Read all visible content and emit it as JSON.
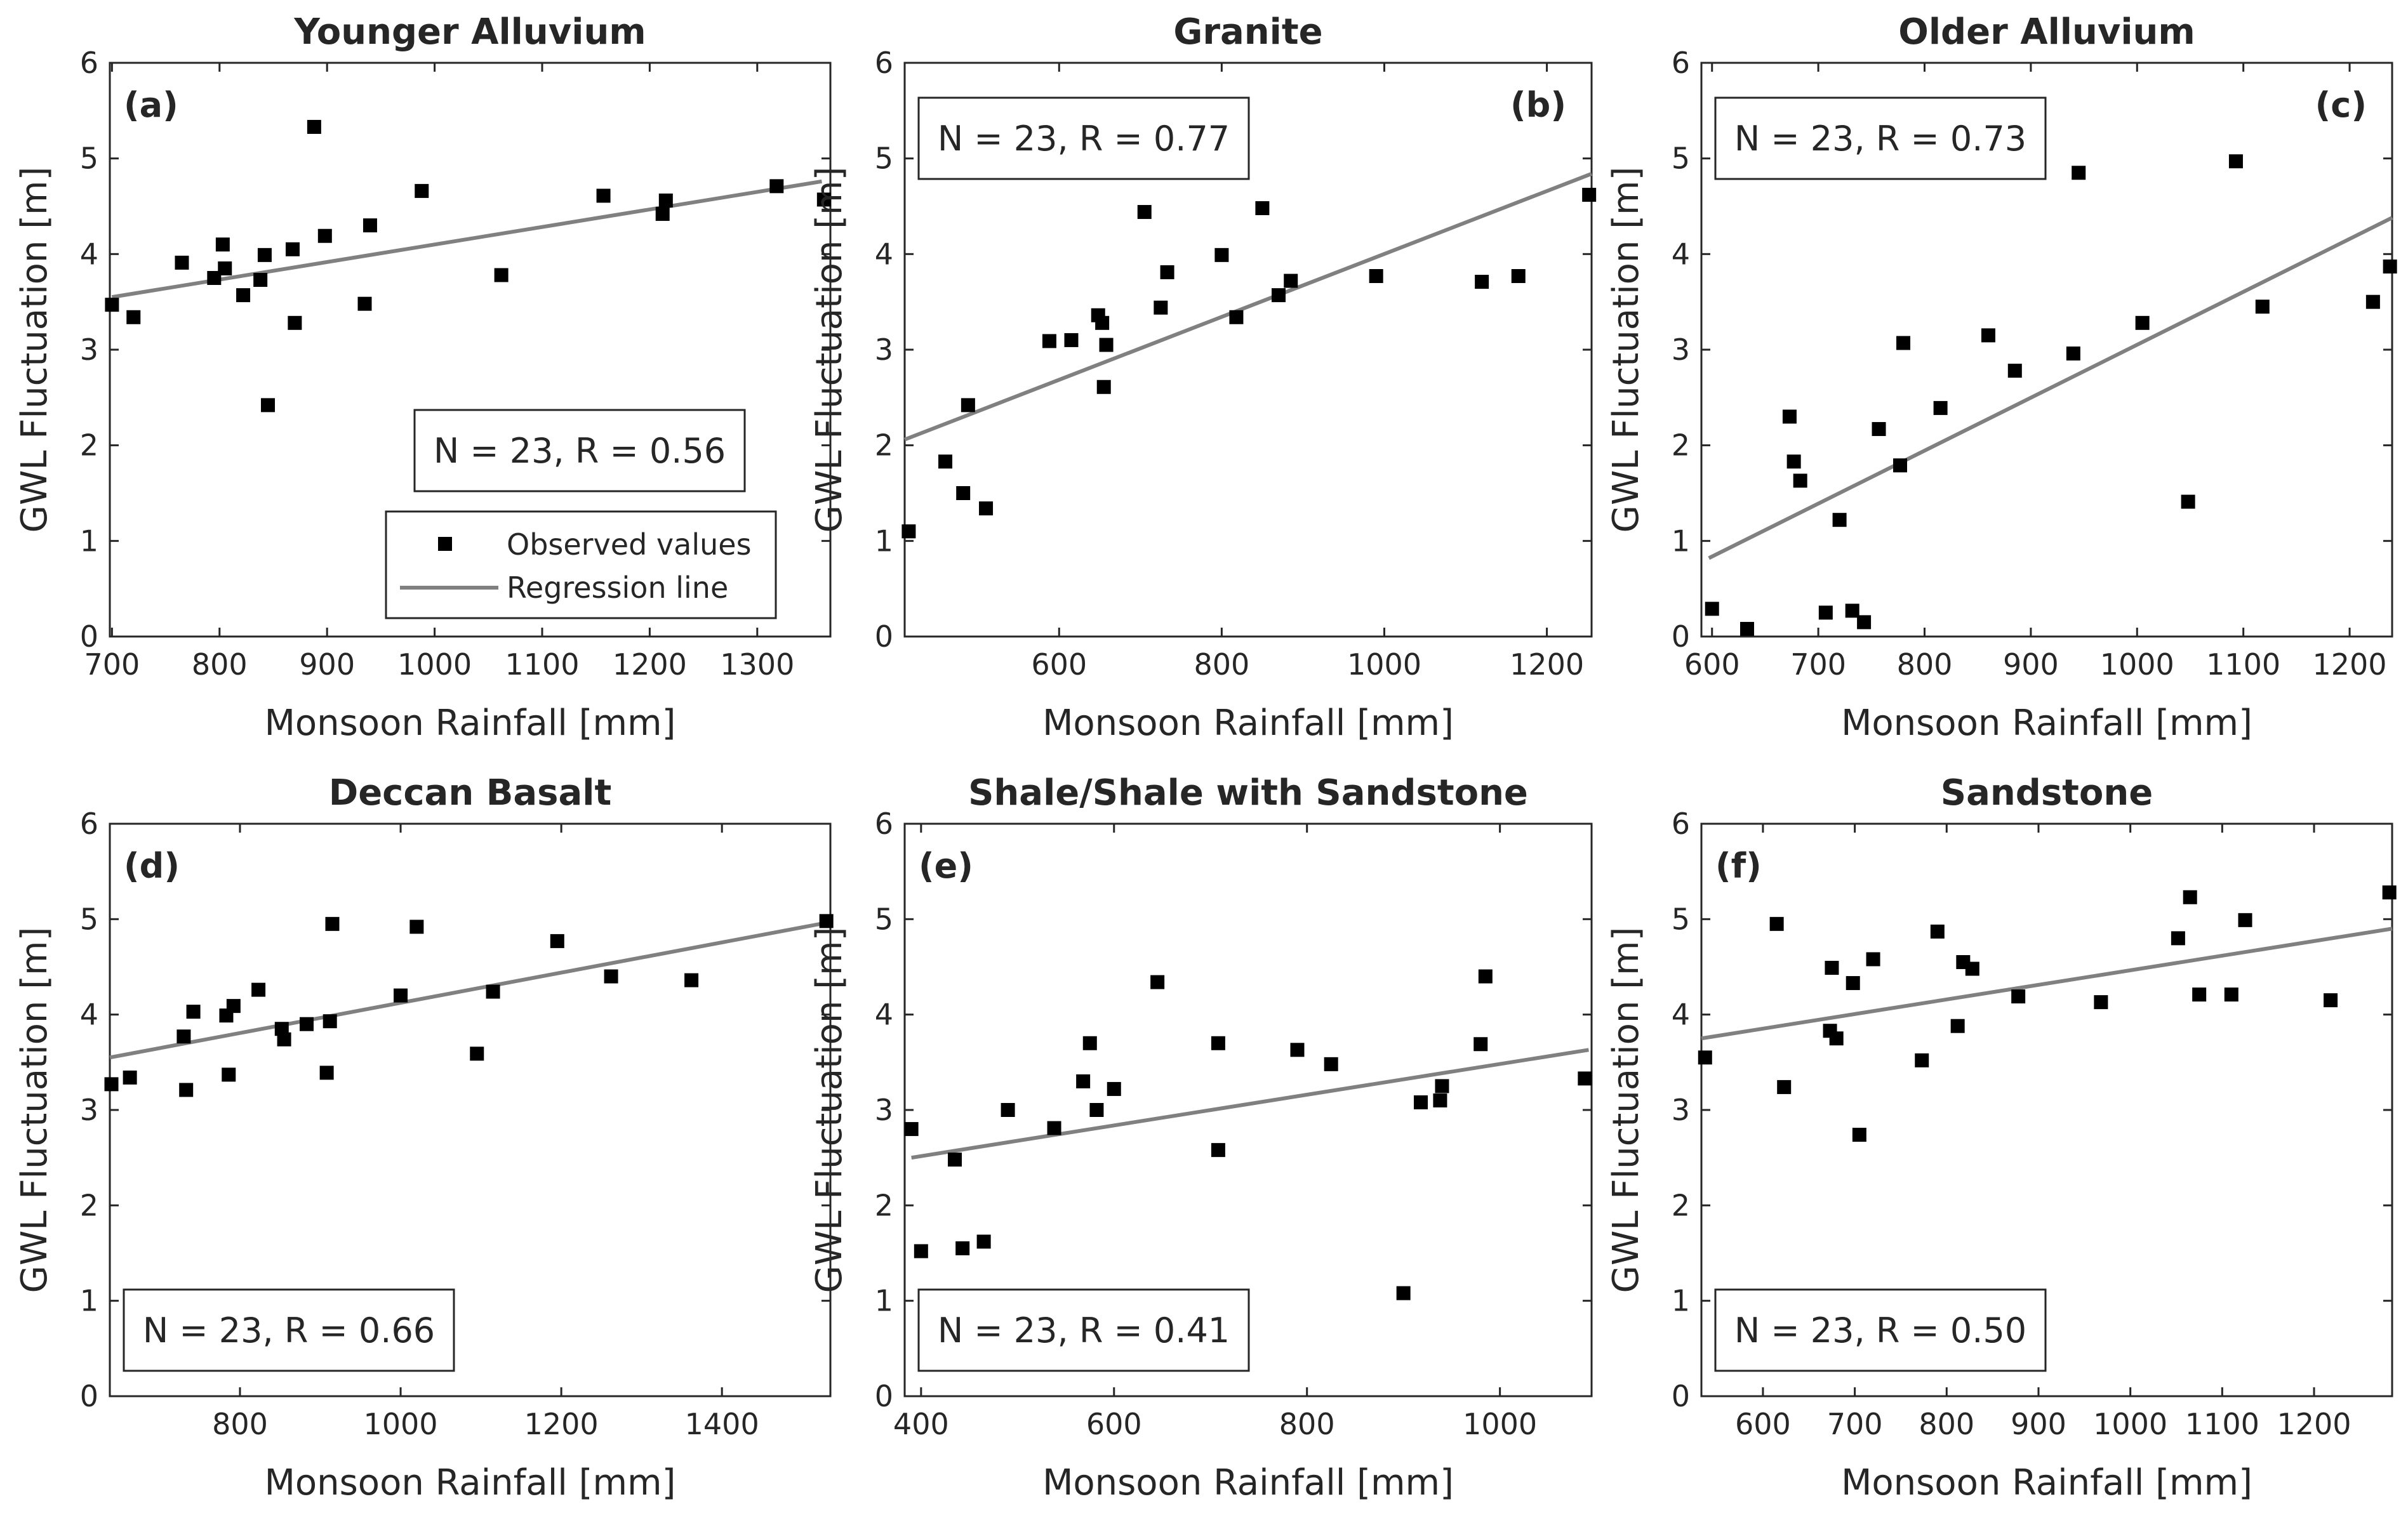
{
  "chart_data": [
    {
      "type": "scatter",
      "title": "Younger Alluvium",
      "panel_label": "(a)",
      "xlabel": "Monsoon Rainfall [mm]",
      "ylabel": "GWL Fluctuation [m]",
      "xlim": [
        698,
        1368
      ],
      "ylim": [
        0,
        6
      ],
      "xticks": [
        700,
        800,
        900,
        1000,
        1100,
        1200,
        1300
      ],
      "yticks": [
        0,
        1,
        2,
        3,
        4,
        5,
        6
      ],
      "stat_text": "N = 23, R = 0.56",
      "stat_box": "lower-right",
      "regression": {
        "x": [
          700,
          1360
        ],
        "y": [
          3.55,
          4.76
        ]
      },
      "points": [
        {
          "x": 700,
          "y": 3.47
        },
        {
          "x": 720,
          "y": 3.34
        },
        {
          "x": 765,
          "y": 3.91
        },
        {
          "x": 795,
          "y": 3.75
        },
        {
          "x": 803,
          "y": 4.1
        },
        {
          "x": 805,
          "y": 3.85
        },
        {
          "x": 822,
          "y": 3.57
        },
        {
          "x": 838,
          "y": 3.73
        },
        {
          "x": 842,
          "y": 3.99
        },
        {
          "x": 845,
          "y": 2.42
        },
        {
          "x": 868,
          "y": 4.05
        },
        {
          "x": 870,
          "y": 3.28
        },
        {
          "x": 888,
          "y": 5.33
        },
        {
          "x": 898,
          "y": 4.19
        },
        {
          "x": 935,
          "y": 3.48
        },
        {
          "x": 940,
          "y": 4.3
        },
        {
          "x": 988,
          "y": 4.66
        },
        {
          "x": 1062,
          "y": 3.78
        },
        {
          "x": 1157,
          "y": 4.61
        },
        {
          "x": 1212,
          "y": 4.42
        },
        {
          "x": 1215,
          "y": 4.56
        },
        {
          "x": 1318,
          "y": 4.71
        },
        {
          "x": 1362,
          "y": 4.57
        }
      ]
    },
    {
      "type": "scatter",
      "title": "Granite",
      "panel_label": "(b)",
      "xlabel": "Monsoon Rainfall [mm]",
      "ylabel": "GWL Fluctuation [m]",
      "xlim": [
        410,
        1255
      ],
      "ylim": [
        0,
        6
      ],
      "xticks": [
        600,
        800,
        1000,
        1200
      ],
      "yticks": [
        0,
        1,
        2,
        3,
        4,
        5,
        6
      ],
      "stat_text": "N = 23, R = 0.77",
      "stat_box": "upper-left",
      "regression": {
        "x": [
          410,
          1255
        ],
        "y": [
          2.06,
          4.84
        ]
      },
      "points": [
        {
          "x": 415,
          "y": 1.1
        },
        {
          "x": 460,
          "y": 1.83
        },
        {
          "x": 482,
          "y": 1.5
        },
        {
          "x": 488,
          "y": 2.42
        },
        {
          "x": 510,
          "y": 1.34
        },
        {
          "x": 588,
          "y": 3.09
        },
        {
          "x": 615,
          "y": 3.1
        },
        {
          "x": 648,
          "y": 3.36
        },
        {
          "x": 653,
          "y": 3.28
        },
        {
          "x": 655,
          "y": 2.61
        },
        {
          "x": 658,
          "y": 3.05
        },
        {
          "x": 705,
          "y": 4.44
        },
        {
          "x": 725,
          "y": 3.44
        },
        {
          "x": 733,
          "y": 3.81
        },
        {
          "x": 800,
          "y": 3.99
        },
        {
          "x": 818,
          "y": 3.34
        },
        {
          "x": 850,
          "y": 4.48
        },
        {
          "x": 870,
          "y": 3.57
        },
        {
          "x": 885,
          "y": 3.72
        },
        {
          "x": 990,
          "y": 3.77
        },
        {
          "x": 1120,
          "y": 3.71
        },
        {
          "x": 1165,
          "y": 3.77
        },
        {
          "x": 1252,
          "y": 4.62
        }
      ]
    },
    {
      "type": "scatter",
      "title": "Older Alluvium",
      "panel_label": "(c)",
      "xlabel": "Monsoon Rainfall [mm]",
      "ylabel": "GWL Fluctuation [m]",
      "xlim": [
        590,
        1240
      ],
      "ylim": [
        0,
        6
      ],
      "xticks": [
        600,
        700,
        800,
        900,
        1000,
        1100,
        1200
      ],
      "yticks": [
        0,
        1,
        2,
        3,
        4,
        5,
        6
      ],
      "stat_text": "N = 23, R = 0.73",
      "stat_box": "upper-left",
      "regression": {
        "x": [
          597,
          1240
        ],
        "y": [
          0.82,
          4.38
        ]
      },
      "points": [
        {
          "x": 600,
          "y": 0.29
        },
        {
          "x": 633,
          "y": 0.08
        },
        {
          "x": 673,
          "y": 2.3
        },
        {
          "x": 677,
          "y": 1.83
        },
        {
          "x": 683,
          "y": 1.63
        },
        {
          "x": 707,
          "y": 0.25
        },
        {
          "x": 720,
          "y": 1.22
        },
        {
          "x": 732,
          "y": 0.27
        },
        {
          "x": 743,
          "y": 0.15
        },
        {
          "x": 757,
          "y": 2.17
        },
        {
          "x": 777,
          "y": 1.79
        },
        {
          "x": 780,
          "y": 3.07
        },
        {
          "x": 815,
          "y": 2.39
        },
        {
          "x": 860,
          "y": 3.15
        },
        {
          "x": 885,
          "y": 2.78
        },
        {
          "x": 940,
          "y": 2.96
        },
        {
          "x": 945,
          "y": 4.85
        },
        {
          "x": 1005,
          "y": 3.28
        },
        {
          "x": 1048,
          "y": 1.41
        },
        {
          "x": 1093,
          "y": 4.97
        },
        {
          "x": 1118,
          "y": 3.45
        },
        {
          "x": 1222,
          "y": 3.5
        },
        {
          "x": 1238,
          "y": 3.87
        }
      ]
    },
    {
      "type": "scatter",
      "title": "Deccan Basalt",
      "panel_label": "(d)",
      "xlabel": "Monsoon Rainfall [mm]",
      "ylabel": "GWL Fluctuation [m]",
      "xlim": [
        638,
        1535
      ],
      "ylim": [
        0,
        6
      ],
      "xticks": [
        800,
        1000,
        1200,
        1400
      ],
      "yticks": [
        0,
        1,
        2,
        3,
        4,
        5,
        6
      ],
      "stat_text": "N = 23, R = 0.66",
      "stat_box": "lower-left",
      "regression": {
        "x": [
          638,
          1535
        ],
        "y": [
          3.55,
          4.97
        ]
      },
      "points": [
        {
          "x": 640,
          "y": 3.27
        },
        {
          "x": 663,
          "y": 3.34
        },
        {
          "x": 730,
          "y": 3.77
        },
        {
          "x": 733,
          "y": 3.21
        },
        {
          "x": 742,
          "y": 4.03
        },
        {
          "x": 783,
          "y": 3.99
        },
        {
          "x": 786,
          "y": 3.37
        },
        {
          "x": 792,
          "y": 4.09
        },
        {
          "x": 823,
          "y": 4.26
        },
        {
          "x": 852,
          "y": 3.85
        },
        {
          "x": 855,
          "y": 3.74
        },
        {
          "x": 883,
          "y": 3.9
        },
        {
          "x": 908,
          "y": 3.39
        },
        {
          "x": 912,
          "y": 3.93
        },
        {
          "x": 915,
          "y": 4.95
        },
        {
          "x": 1000,
          "y": 4.2
        },
        {
          "x": 1020,
          "y": 4.92
        },
        {
          "x": 1095,
          "y": 3.59
        },
        {
          "x": 1115,
          "y": 4.24
        },
        {
          "x": 1195,
          "y": 4.77
        },
        {
          "x": 1262,
          "y": 4.4
        },
        {
          "x": 1362,
          "y": 4.36
        },
        {
          "x": 1530,
          "y": 4.98
        }
      ]
    },
    {
      "type": "scatter",
      "title": "Shale/Shale with Sandstone",
      "panel_label": "(e)",
      "xlabel": "Monsoon Rainfall [mm]",
      "ylabel": "GWL Fluctuation [m]",
      "xlim": [
        383,
        1095
      ],
      "ylim": [
        0,
        6
      ],
      "xticks": [
        400,
        600,
        800,
        1000
      ],
      "yticks": [
        0,
        1,
        2,
        3,
        4,
        5,
        6
      ],
      "stat_text": "N = 23, R = 0.41",
      "stat_box": "lower-left",
      "regression": {
        "x": [
          390,
          1092
        ],
        "y": [
          2.5,
          3.63
        ]
      },
      "points": [
        {
          "x": 390,
          "y": 2.8
        },
        {
          "x": 400,
          "y": 1.52
        },
        {
          "x": 435,
          "y": 2.48
        },
        {
          "x": 443,
          "y": 1.55
        },
        {
          "x": 465,
          "y": 1.62
        },
        {
          "x": 490,
          "y": 3.0
        },
        {
          "x": 538,
          "y": 2.81
        },
        {
          "x": 568,
          "y": 3.3
        },
        {
          "x": 575,
          "y": 3.7
        },
        {
          "x": 582,
          "y": 3.0
        },
        {
          "x": 600,
          "y": 3.22
        },
        {
          "x": 645,
          "y": 4.34
        },
        {
          "x": 708,
          "y": 3.7
        },
        {
          "x": 708,
          "y": 2.58
        },
        {
          "x": 790,
          "y": 3.63
        },
        {
          "x": 825,
          "y": 3.48
        },
        {
          "x": 900,
          "y": 1.08
        },
        {
          "x": 918,
          "y": 3.08
        },
        {
          "x": 938,
          "y": 3.1
        },
        {
          "x": 940,
          "y": 3.25
        },
        {
          "x": 980,
          "y": 3.69
        },
        {
          "x": 985,
          "y": 4.4
        },
        {
          "x": 1088,
          "y": 3.33
        }
      ]
    },
    {
      "type": "scatter",
      "title": "Sandstone",
      "panel_label": "(f)",
      "xlabel": "Monsoon Rainfall [mm]",
      "ylabel": "GWL Fluctuation [m]",
      "xlim": [
        533,
        1285
      ],
      "ylim": [
        0,
        6
      ],
      "xticks": [
        600,
        700,
        800,
        900,
        1000,
        1100,
        1200
      ],
      "yticks": [
        0,
        1,
        2,
        3,
        4,
        5,
        6
      ],
      "stat_text": "N = 23, R = 0.50",
      "stat_box": "lower-left",
      "regression": {
        "x": [
          533,
          1285
        ],
        "y": [
          3.75,
          4.9
        ]
      },
      "points": [
        {
          "x": 537,
          "y": 3.55
        },
        {
          "x": 615,
          "y": 4.95
        },
        {
          "x": 623,
          "y": 3.24
        },
        {
          "x": 673,
          "y": 3.83
        },
        {
          "x": 675,
          "y": 4.49
        },
        {
          "x": 680,
          "y": 3.75
        },
        {
          "x": 698,
          "y": 4.33
        },
        {
          "x": 705,
          "y": 2.74
        },
        {
          "x": 720,
          "y": 4.58
        },
        {
          "x": 773,
          "y": 3.52
        },
        {
          "x": 790,
          "y": 4.87
        },
        {
          "x": 812,
          "y": 3.88
        },
        {
          "x": 818,
          "y": 4.55
        },
        {
          "x": 828,
          "y": 4.48
        },
        {
          "x": 878,
          "y": 4.19
        },
        {
          "x": 968,
          "y": 4.13
        },
        {
          "x": 1052,
          "y": 4.8
        },
        {
          "x": 1065,
          "y": 5.23
        },
        {
          "x": 1075,
          "y": 4.21
        },
        {
          "x": 1110,
          "y": 4.21
        },
        {
          "x": 1125,
          "y": 4.99
        },
        {
          "x": 1218,
          "y": 4.15
        },
        {
          "x": 1282,
          "y": 5.28
        }
      ]
    }
  ],
  "legend": {
    "placement": "lower-right of panel (a)",
    "observed": "Observed values",
    "regression": "Regression line"
  },
  "colors": {
    "marker": "#000000",
    "regression": "#808080",
    "axes": "#262626",
    "background": "#ffffff"
  }
}
